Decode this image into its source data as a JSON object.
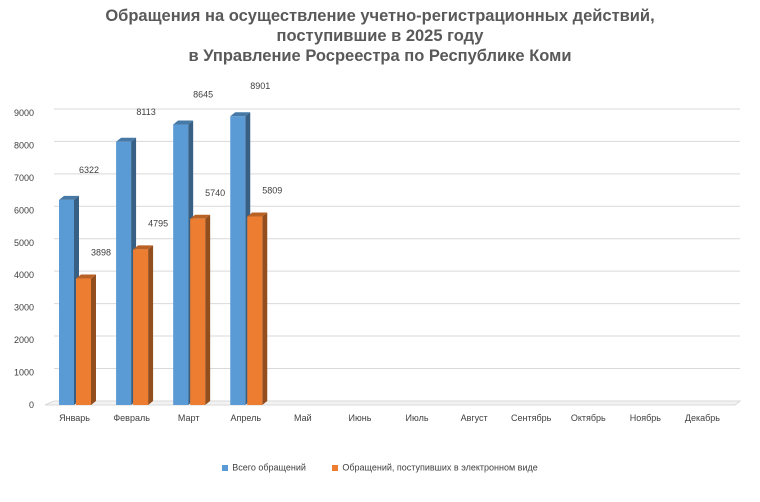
{
  "chart_data": {
    "type": "bar",
    "title_lines": [
      "Обращения на осуществление учетно-регистрационных действий,",
      "поступившие в 2025 году",
      "в Управление Росреестра по Республике Коми"
    ],
    "categories": [
      "Январь",
      "Февраль",
      "Март",
      "Апрель",
      "Май",
      "Июнь",
      "Июль",
      "Август",
      "Сентябрь",
      "Октябрь",
      "Ноябрь",
      "Декабрь"
    ],
    "series": [
      {
        "name": "Всего обращений",
        "color": "#5b9bd5",
        "values": [
          6322,
          8113,
          8645,
          8901,
          null,
          null,
          null,
          null,
          null,
          null,
          null,
          null
        ]
      },
      {
        "name": "Обращений, поступивших в электронном виде",
        "color": "#ed7d31",
        "values": [
          3898,
          4795,
          5740,
          5809,
          null,
          null,
          null,
          null,
          null,
          null,
          null,
          null
        ]
      }
    ],
    "y_ticks": [
      "0",
      "1000",
      "2000",
      "3000",
      "4000",
      "5000",
      "6000",
      "7000",
      "8000",
      "9000"
    ],
    "ylim": [
      0,
      9000
    ],
    "grid": true,
    "style": "3d-clustered-column",
    "legend_position": "bottom"
  }
}
